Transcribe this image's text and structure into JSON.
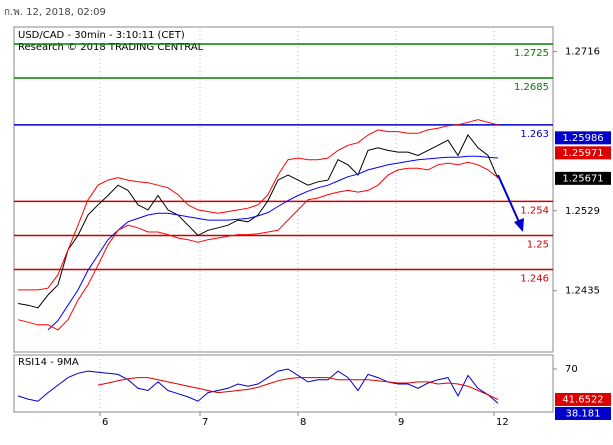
{
  "header": {
    "timestamp": "ก.พ. 12, 2018, 02:09"
  },
  "chart_data": [
    {
      "type": "line",
      "title": "USD/CAD - 30min - 3:10:11 (CET)",
      "subtitle": "Research © 2018 TRADING CENTRAL",
      "x": [
        0,
        1,
        2,
        3,
        4,
        5,
        6,
        7,
        8,
        9,
        10,
        11,
        12,
        13,
        14,
        15,
        16,
        17,
        18,
        19,
        20,
        21,
        22,
        23,
        24,
        25,
        26,
        27,
        28,
        29,
        30,
        31,
        32,
        33,
        34,
        35,
        36,
        37,
        38,
        39,
        40,
        41,
        42,
        43,
        44,
        45,
        46,
        47,
        48
      ],
      "xlim": [
        -0.4,
        53.5
      ],
      "xticks": [
        {
          "value": 8.2,
          "label": "6"
        },
        {
          "value": 18.2,
          "label": "7"
        },
        {
          "value": 28,
          "label": "8"
        },
        {
          "value": 37.8,
          "label": "9"
        },
        {
          "value": 47.6,
          "label": "12"
        }
      ],
      "ylim": [
        1.2363,
        1.2745
      ],
      "yticks": [
        1.2716,
        1.2529,
        1.2435
      ],
      "grid": true,
      "series": [
        {
          "color": "#000000",
          "values": [
            1.242,
            1.2418,
            1.2415,
            1.243,
            1.2442,
            1.2483,
            1.25,
            1.2524,
            1.2536,
            1.2547,
            1.2559,
            1.2553,
            1.2536,
            1.253,
            1.2547,
            1.253,
            1.2524,
            1.2512,
            1.25,
            1.2506,
            1.2509,
            1.2512,
            1.2518,
            1.2516,
            1.2524,
            1.2541,
            1.2565,
            1.2571,
            1.2565,
            1.2559,
            1.2563,
            1.2565,
            1.2589,
            1.2583,
            1.2571,
            1.26,
            1.2603,
            1.26,
            1.2598,
            1.2598,
            1.2594,
            1.26,
            1.2606,
            1.2612,
            1.2594,
            1.2618,
            1.2603,
            1.2594,
            1.25671
          ]
        },
        {
          "color": "#0000ff",
          "values": [
            null,
            null,
            null,
            1.2389,
            1.24,
            1.2418,
            1.2436,
            1.2459,
            1.2477,
            1.2495,
            1.2506,
            1.2516,
            1.252,
            1.2524,
            1.2526,
            1.2526,
            1.2524,
            1.2522,
            1.252,
            1.2518,
            1.2518,
            1.2518,
            1.2519,
            1.252,
            1.2523,
            1.2527,
            1.2534,
            1.2541,
            1.2547,
            1.2552,
            1.2556,
            1.2559,
            1.2564,
            1.2569,
            1.2572,
            1.2577,
            1.258,
            1.2583,
            1.2585,
            1.2587,
            1.2589,
            1.259,
            1.2591,
            1.2592,
            1.2592,
            1.2593,
            1.2593,
            1.2592,
            1.2591
          ]
        },
        {
          "color": "#ff0000",
          "values": [
            1.2436,
            1.2436,
            1.2436,
            1.2438,
            1.2454,
            1.2483,
            1.2512,
            1.2542,
            1.2559,
            1.2565,
            1.2568,
            1.2565,
            1.2563,
            1.2562,
            1.2559,
            1.2556,
            1.2548,
            1.2536,
            1.253,
            1.2528,
            1.2526,
            1.2528,
            1.253,
            1.2532,
            1.2536,
            1.2548,
            1.2571,
            1.2589,
            1.2591,
            1.2589,
            1.2589,
            1.2591,
            1.26,
            1.2606,
            1.2609,
            1.2618,
            1.2624,
            1.2622,
            1.2622,
            1.262,
            1.262,
            1.2624,
            1.2626,
            1.2629,
            1.263,
            1.2633,
            1.2636,
            1.2633,
            1.263
          ]
        },
        {
          "color": "#ff0000",
          "values": [
            1.2401,
            1.2398,
            1.2395,
            1.2395,
            1.2389,
            1.2401,
            1.2424,
            1.2442,
            1.2465,
            1.2489,
            1.2506,
            1.2512,
            1.2509,
            1.2504,
            1.2504,
            1.2501,
            1.2497,
            1.2495,
            1.2492,
            1.2495,
            1.2497,
            1.2499,
            1.2501,
            1.2501,
            1.2502,
            1.2504,
            1.2506,
            1.2518,
            1.253,
            1.2542,
            1.2544,
            1.2548,
            1.2551,
            1.2553,
            1.2551,
            1.2553,
            1.2559,
            1.2571,
            1.2577,
            1.2579,
            1.2579,
            1.2577,
            1.2583,
            1.2585,
            1.2583,
            1.2586,
            1.2583,
            1.2577,
            1.2568
          ]
        }
      ],
      "levels": [
        {
          "value": 1.2725,
          "color": "#008000"
        },
        {
          "value": 1.2685,
          "color": "#008000"
        },
        {
          "value": 1.263,
          "color": "#0000cc"
        },
        {
          "value": 1.254,
          "color": "#cc0000"
        },
        {
          "value": 1.25,
          "color": "#cc0000"
        },
        {
          "value": 1.246,
          "color": "#cc0000"
        }
      ],
      "price_labels": [
        {
          "value": 1.25971,
          "color": "#dd0000"
        },
        {
          "value": 1.25986,
          "color": "#0000cc"
        },
        {
          "value": 1.25671,
          "color": "#000000"
        }
      ]
    },
    {
      "type": "line",
      "title": "RSI14 - 9MA",
      "xlim": [
        -0.4,
        53.5
      ],
      "ylim": [
        30,
        83
      ],
      "yticks": [
        70
      ],
      "series": [
        {
          "color": "#0000cc",
          "values": [
            45,
            42,
            40,
            48,
            55,
            62,
            66,
            68,
            67,
            66,
            65,
            60,
            52,
            50,
            58,
            50,
            47,
            44,
            40,
            48,
            50,
            52,
            56,
            54,
            56,
            62,
            68,
            70,
            64,
            58,
            60,
            60,
            68,
            62,
            50,
            65,
            62,
            58,
            56,
            56,
            52,
            57,
            60,
            62,
            45,
            64,
            52,
            46,
            38.181
          ]
        },
        {
          "color": "#dd0000",
          "values": [
            null,
            null,
            null,
            null,
            null,
            null,
            null,
            null,
            55,
            57,
            59,
            61,
            62,
            62,
            60,
            58,
            56,
            54,
            52,
            50,
            48,
            49,
            50,
            51,
            53,
            56,
            59,
            61,
            62,
            62,
            62,
            62,
            60,
            60,
            60,
            60,
            59,
            58,
            57,
            57,
            58,
            58,
            56,
            57,
            56,
            54,
            50,
            46,
            41.6522
          ]
        }
      ],
      "price_labels": [
        {
          "value": 41.6522,
          "color": "#dd0000"
        },
        {
          "value": 38.181,
          "color": "#0000cc"
        }
      ]
    }
  ]
}
